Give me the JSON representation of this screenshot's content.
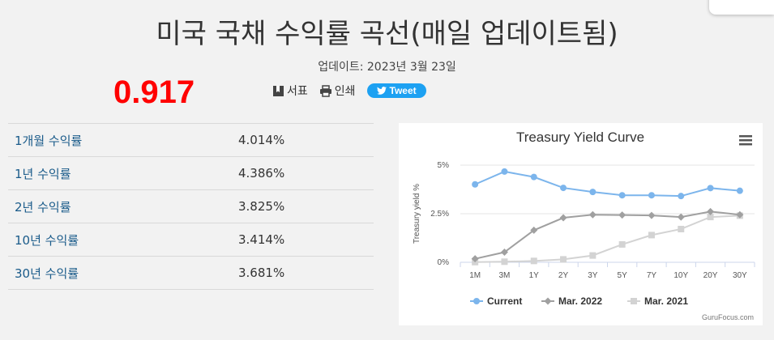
{
  "header": {
    "title": "미국 국채 수익률 곡선(매일 업데이트됨)",
    "updated": "업데이트: 2023년 3월 23일",
    "big_value": "0.917"
  },
  "actions": {
    "bookmark_label": "서표",
    "print_label": "인쇄",
    "tweet_label": "Tweet"
  },
  "yields": [
    {
      "label": "1개월 수익률",
      "value": "4.014%"
    },
    {
      "label": "1년 수익률",
      "value": "4.386%"
    },
    {
      "label": "2년 수익률",
      "value": "3.825%"
    },
    {
      "label": "10년 수익률",
      "value": "3.414%"
    },
    {
      "label": "30년 수익률",
      "value": "3.681%"
    }
  ],
  "chart_data": {
    "type": "line",
    "title": "Treasury Yield Curve",
    "ylabel": "Treasury yield %",
    "xlabel": "",
    "categories": [
      "1M",
      "3M",
      "1Y",
      "2Y",
      "3Y",
      "5Y",
      "7Y",
      "10Y",
      "20Y",
      "30Y"
    ],
    "yticks": [
      "0%",
      "2.5%",
      "5%"
    ],
    "ylim": [
      0,
      5
    ],
    "legend_position": "bottom",
    "grid": true,
    "credit": "GuruFocus.com",
    "series": [
      {
        "name": "Current",
        "color": "#7cb5ec",
        "marker": "circle",
        "values": [
          4.01,
          4.67,
          4.39,
          3.83,
          3.62,
          3.45,
          3.45,
          3.41,
          3.82,
          3.68
        ]
      },
      {
        "name": "Mar. 2022",
        "color": "#a0a0a0",
        "marker": "diamond",
        "values": [
          0.18,
          0.52,
          1.65,
          2.29,
          2.45,
          2.43,
          2.41,
          2.33,
          2.61,
          2.45
        ]
      },
      {
        "name": "Mar. 2021",
        "color": "#d3d3d3",
        "marker": "square",
        "values": [
          0.01,
          0.03,
          0.07,
          0.15,
          0.35,
          0.92,
          1.4,
          1.71,
          2.33,
          2.4
        ]
      }
    ]
  }
}
